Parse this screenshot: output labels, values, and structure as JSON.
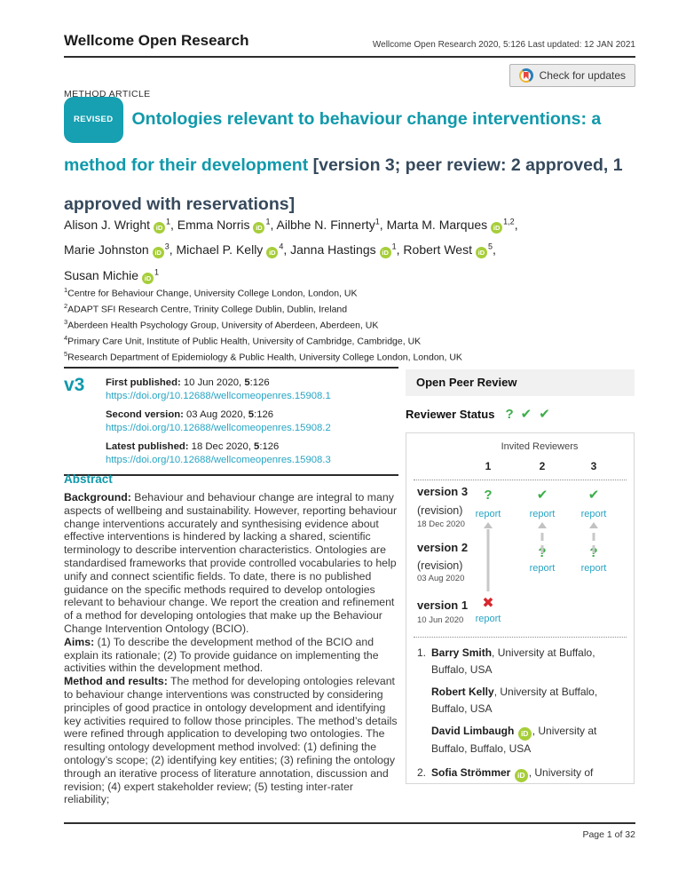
{
  "header": {
    "journal": "Wellcome Open Research",
    "citation": "Wellcome Open Research 2020, 5:126 Last updated: 12 JAN 2021",
    "check_updates_label": "Check for updates"
  },
  "article": {
    "type_label": "METHOD ARTICLE",
    "badge": "REVISED",
    "title": "Ontologies relevant to behaviour change interventions: a method for their development",
    "title_suffix": "[version 3; peer review: 2 approved, 1 approved with reservations]",
    "author_lines": [
      [
        {
          "name": "Alison J. Wright",
          "orcid": true,
          "sup": "1"
        },
        {
          "name": "Emma Norris",
          "orcid": true,
          "sup": "1"
        },
        {
          "name": "Ailbhe N. Finnerty",
          "orcid": false,
          "sup": "1"
        },
        {
          "name": "Marta M. Marques",
          "orcid": true,
          "sup": "1,2"
        }
      ],
      [
        {
          "name": "Marie Johnston",
          "orcid": true,
          "sup": "3"
        },
        {
          "name": "Michael P. Kelly",
          "orcid": true,
          "sup": "4"
        },
        {
          "name": "Janna Hastings",
          "orcid": true,
          "sup": "1"
        },
        {
          "name": "Robert West",
          "orcid": true,
          "sup": "5"
        }
      ],
      [
        {
          "name": "Susan Michie",
          "orcid": true,
          "sup": "1"
        }
      ]
    ],
    "affiliations": [
      {
        "sup": "1",
        "text": "Centre for Behaviour Change, University College London, London, UK"
      },
      {
        "sup": "2",
        "text": "ADAPT SFI Research Centre, Trinity College Dublin, Dublin, Ireland"
      },
      {
        "sup": "3",
        "text": "Aberdeen Health Psychology Group, University of Aberdeen, Aberdeen, UK"
      },
      {
        "sup": "4",
        "text": "Primary Care Unit, Institute of Public Health, University of Cambridge, Cambridge, UK"
      },
      {
        "sup": "5",
        "text": "Research Department of Epidemiology & Public Health, University College London, London, UK"
      }
    ]
  },
  "pubinfo": {
    "version_tag": "v3",
    "entries": [
      {
        "label": "First published:",
        "date": "10 Jun 2020,",
        "volume": "5",
        "pages": ":126",
        "doi": "https://doi.org/10.12688/wellcomeopenres.15908.1"
      },
      {
        "label": "Second version:",
        "date": "03 Aug 2020,",
        "volume": "5",
        "pages": ":126",
        "doi": "https://doi.org/10.12688/wellcomeopenres.15908.2"
      },
      {
        "label": "Latest published:",
        "date": "18 Dec 2020,",
        "volume": "5",
        "pages": ":126",
        "doi": "https://doi.org/10.12688/wellcomeopenres.15908.3"
      }
    ]
  },
  "abstract": {
    "heading": "Abstract",
    "paragraphs": [
      {
        "lead": "Background:",
        "text": " Behaviour and behaviour change are integral to many aspects of wellbeing and sustainability. However, reporting behaviour change interventions accurately and synthesising evidence about effective interventions is hindered by lacking a shared, scientific terminology to describe intervention characteristics. Ontologies are standardised frameworks that provide controlled vocabularies to help unify and connect scientific fields. To date, there is no published guidance on the specific methods required to develop ontologies relevant to behaviour change. We report the creation and refinement of a method for developing ontologies that make up the Behaviour Change Intervention Ontology (BCIO)."
      },
      {
        "lead": "Aims:",
        "text": " (1) To describe the development method of the BCIO and explain its rationale; (2) To provide guidance on implementing the activities within the development method."
      },
      {
        "lead": "Method and results:",
        "text": " The method for developing ontologies relevant to behaviour change interventions was constructed by considering principles of good practice in ontology development and identifying key activities required to follow those principles. The method’s details were refined through application to developing two ontologies. The resulting ontology development method involved: (1) defining the ontology’s scope; (2) identifying key entities; (3) refining the ontology through an iterative process of literature annotation, discussion and revision; (4) expert stakeholder review; (5) testing inter-rater reliability;"
      }
    ]
  },
  "peer_review": {
    "title": "Open Peer Review",
    "status_label": "Reviewer Status",
    "status_icons": [
      "question",
      "check",
      "check"
    ],
    "invited_label": "Invited Reviewers",
    "columns": [
      "1",
      "2",
      "3"
    ],
    "report_label": "report",
    "versions": [
      {
        "name": "version 3",
        "revision": "(revision)",
        "date": "18 Dec 2020",
        "cells": [
          {
            "col": 1,
            "icon": "question"
          },
          {
            "col": 2,
            "icon": "check"
          },
          {
            "col": 3,
            "icon": "check"
          }
        ]
      },
      {
        "name": "version 2",
        "revision": "(revision)",
        "date": "03 Aug 2020",
        "cells": [
          {
            "col": 2,
            "icon": "question"
          },
          {
            "col": 3,
            "icon": "question"
          }
        ]
      },
      {
        "name": "version 1",
        "revision": null,
        "date": "10 Jun 2020",
        "cells": [
          {
            "col": 1,
            "icon": "cross"
          }
        ]
      }
    ],
    "reviewers": [
      {
        "num": "1.",
        "entries": [
          {
            "name": "Barry Smith",
            "orcid": false,
            "affiliation": ", University at Buffalo, Buffalo, USA"
          },
          {
            "name": "Robert Kelly",
            "orcid": false,
            "affiliation": ", University at Buffalo, Buffalo, USA"
          },
          {
            "name": "David Limbaugh",
            "orcid": true,
            "affiliation": ", University at Buffalo, Buffalo, USA"
          }
        ]
      },
      {
        "num": "2.",
        "entries": [
          {
            "name": "Sofia Strömmer",
            "orcid": true,
            "affiliation": ", University of"
          }
        ]
      }
    ]
  },
  "footer": {
    "page_label": "Page 1 of 32"
  },
  "icons": {
    "orcid_text": "iD",
    "check_glyph": "✔",
    "cross_glyph": "✖",
    "question_glyph": "?"
  },
  "colors": {
    "accent_teal": "#1099ab",
    "title_navy": "#36495c",
    "link_teal": "#27a5c4",
    "green": "#3cae4a",
    "red": "#d7282f",
    "orcid_green": "#a6ce39",
    "badge_teal": "#16a0b2"
  }
}
